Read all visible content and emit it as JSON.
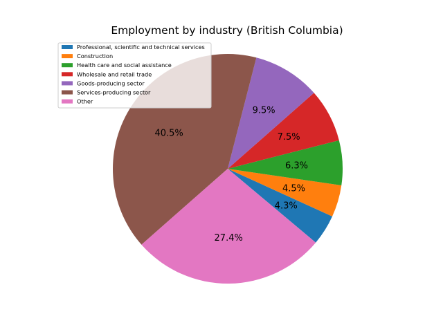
{
  "chart_data": {
    "type": "pie",
    "title": "Employment by industry (British Columbia)",
    "slices": [
      {
        "name": "Professional, scientific and technical services",
        "value": 4.3,
        "label": "4.3%",
        "color": "#1f77b4"
      },
      {
        "name": "Construction",
        "value": 4.5,
        "label": "4.5%",
        "color": "#ff7f0e"
      },
      {
        "name": "Health care and social assistance",
        "value": 6.3,
        "label": "6.3%",
        "color": "#2ca02c"
      },
      {
        "name": "Wholesale and retail trade",
        "value": 7.5,
        "label": "7.5%",
        "color": "#d62728"
      },
      {
        "name": "Goods-producing sector",
        "value": 9.5,
        "label": "9.5%",
        "color": "#9467bd"
      },
      {
        "name": "Services-producing sector",
        "value": 40.5,
        "label": "40.5%",
        "color": "#8c564b"
      },
      {
        "name": "Other",
        "value": 27.4,
        "label": "27.4%",
        "color": "#e377c2"
      }
    ],
    "start_angle_deg": -40,
    "direction": "counterclockwise",
    "legend_placement": "upper-left"
  }
}
